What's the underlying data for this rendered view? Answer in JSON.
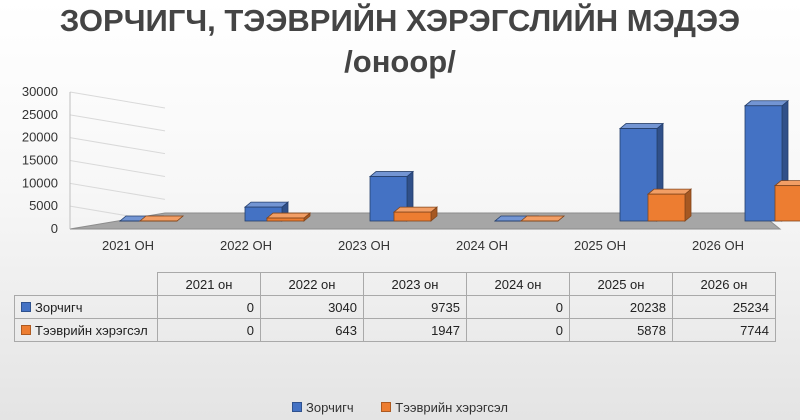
{
  "chart_data": {
    "type": "bar",
    "title_line1": "ЗОРЧИГЧ, ТЭЭВРИЙН ХЭРЭГСЛИЙН МЭДЭЭ",
    "title_line2": "/оноор/",
    "categories": [
      "2021 ОН",
      "2022 ОН",
      "2023 ОН",
      "2024 ОН",
      "2025 ОН",
      "2026 ОН"
    ],
    "table_headers": [
      "2021 он",
      "2022 он",
      "2023 он",
      "2024 он",
      "2025 он",
      "2026 он"
    ],
    "series": [
      {
        "name": "Зорчигч",
        "values": [
          0,
          3040,
          9735,
          0,
          20238,
          25234
        ],
        "color": "#4472C4"
      },
      {
        "name": "Тээврийн хэрэгсэл",
        "values": [
          0,
          643,
          1947,
          0,
          5878,
          7744
        ],
        "color": "#ED7D31"
      }
    ],
    "y_ticks": [
      0,
      5000,
      10000,
      15000,
      20000,
      25000,
      30000
    ],
    "ylim": [
      0,
      30000
    ],
    "legend_position": "bottom",
    "grid": true,
    "style": "3d-clustered-column"
  }
}
